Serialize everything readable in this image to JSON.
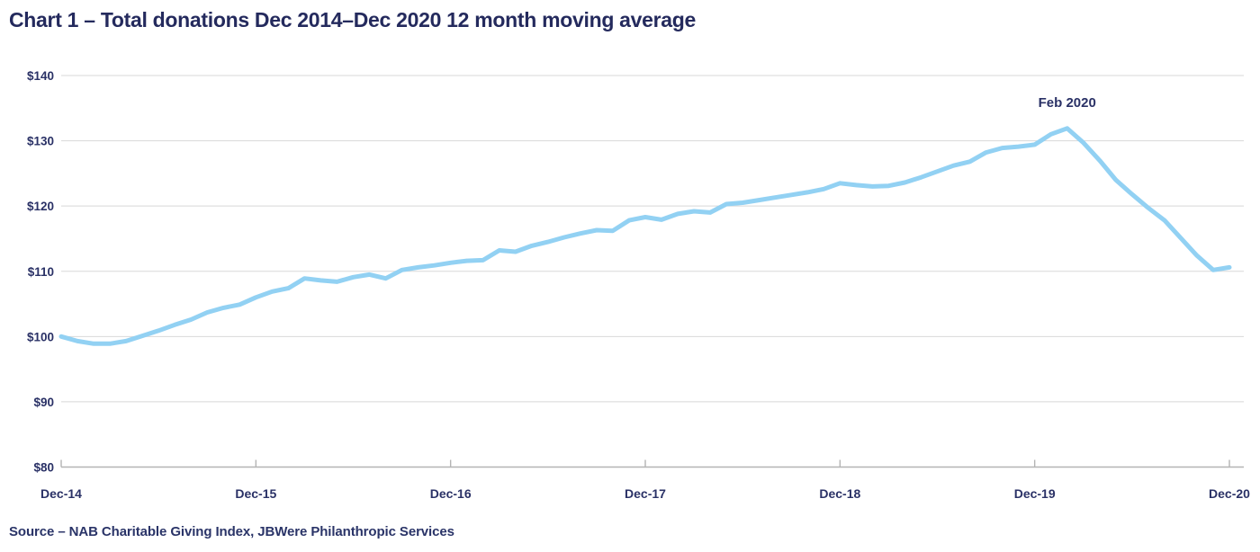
{
  "header": {
    "title": "Chart 1 – Total donations Dec 2014–Dec 2020 12 month moving average"
  },
  "footer": {
    "source": "Source – NAB Charitable Giving Index, JBWere Philanthropic Services"
  },
  "chart_data": {
    "type": "line",
    "title": "Chart 1 – Total donations Dec 2014–Dec 2020 12 month moving average",
    "x_frequency": "monthly",
    "x_range": [
      "Dec-14",
      "Dec-20"
    ],
    "ylim": [
      80,
      140
    ],
    "grid": "horizontal-only",
    "legend_position": "none",
    "yticks": [
      {
        "label": "$80",
        "value": 80
      },
      {
        "label": "$90",
        "value": 90
      },
      {
        "label": "$100",
        "value": 100
      },
      {
        "label": "$110",
        "value": 110
      },
      {
        "label": "$120",
        "value": 120
      },
      {
        "label": "$130",
        "value": 130
      },
      {
        "label": "$140",
        "value": 140
      }
    ],
    "xticks": [
      {
        "label": "Dec-14",
        "index": 0
      },
      {
        "label": "Dec-15",
        "index": 12
      },
      {
        "label": "Dec-16",
        "index": 24
      },
      {
        "label": "Dec-17",
        "index": 36
      },
      {
        "label": "Dec-18",
        "index": 48
      },
      {
        "label": "Dec-19",
        "index": 60
      },
      {
        "label": "Dec-20",
        "index": 72
      }
    ],
    "series": [
      {
        "name": "Total donations 12 month moving average",
        "color": "#92d1f3",
        "values": [
          100.0,
          99.3,
          98.9,
          98.9,
          99.3,
          100.1,
          100.9,
          101.8,
          102.6,
          103.7,
          104.4,
          104.9,
          106.0,
          106.9,
          107.4,
          108.9,
          108.6,
          108.4,
          109.1,
          109.5,
          108.9,
          110.2,
          110.6,
          110.9,
          111.3,
          111.6,
          111.7,
          113.2,
          113.0,
          113.9,
          114.5,
          115.2,
          115.8,
          116.3,
          116.2,
          117.8,
          118.3,
          117.9,
          118.8,
          119.2,
          119.0,
          120.3,
          120.5,
          120.9,
          121.3,
          121.7,
          122.1,
          122.6,
          123.5,
          123.2,
          123.0,
          123.1,
          123.6,
          124.4,
          125.3,
          126.2,
          126.8,
          128.2,
          128.9,
          129.1,
          129.4,
          131.0,
          131.9,
          129.7,
          127.0,
          124.0,
          121.8,
          119.7,
          117.8,
          115.1,
          112.4,
          110.2,
          110.6
        ]
      }
    ],
    "annotation": {
      "label": "Feb 2020",
      "index": 62,
      "value": 131.9
    },
    "colors": {
      "grid": "#d8d8d8",
      "axis": "#b4b4b4",
      "text": "#2a3166",
      "line": "#92d1f3",
      "title": "#242a5d"
    }
  }
}
